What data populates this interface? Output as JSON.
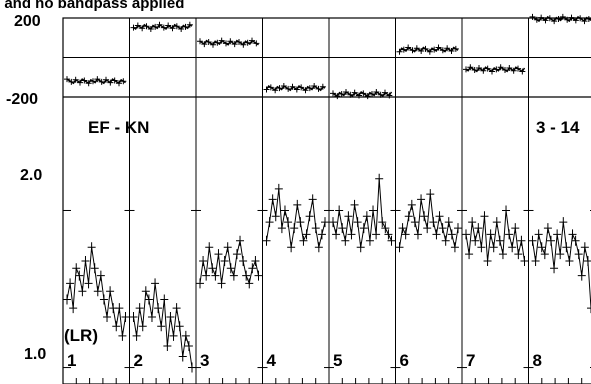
{
  "chart_data": {
    "type": "line",
    "title": "l and no bandpass applied",
    "baseline_label": "EF - KN",
    "baseline_label_right": "3 - 14",
    "polarization_label": "(LR)",
    "phase_panel": {
      "ylabel_ticks": [
        "200",
        "-200"
      ],
      "ylim": [
        -200,
        200
      ]
    },
    "amp_panel": {
      "tick_labels": [
        "2.0",
        "1.0"
      ],
      "ticks": [
        2.0,
        1.0
      ],
      "ylim": [
        0.93,
        3.3
      ],
      "scale": "log"
    },
    "channels": [
      {
        "label": "1",
        "phase": -120,
        "amp": [
          1.35,
          1.45,
          1.3,
          1.55,
          1.5,
          1.4,
          1.6,
          1.45,
          1.7,
          1.55,
          1.4,
          1.5,
          1.35,
          1.25,
          1.4,
          1.3,
          1.2,
          1.3,
          1.15,
          1.25
        ]
      },
      {
        "label": "2",
        "phase": 155,
        "amp": [
          1.25,
          1.15,
          1.3,
          1.2,
          1.4,
          1.35,
          1.25,
          1.45,
          1.3,
          1.2,
          1.35,
          1.1,
          1.25,
          1.15,
          1.3,
          1.2,
          1.05,
          1.15,
          1.1,
          1.0
        ]
      },
      {
        "label": "3",
        "phase": 75,
        "amp": [
          1.45,
          1.6,
          1.5,
          1.7,
          1.55,
          1.5,
          1.65,
          1.45,
          1.6,
          1.7,
          1.55,
          1.5,
          1.65,
          1.75,
          1.6,
          1.5,
          1.45,
          1.55,
          1.6,
          1.5
        ]
      },
      {
        "label": "4",
        "phase": -155,
        "amp": [
          1.75,
          1.9,
          2.1,
          1.95,
          2.2,
          1.85,
          2.0,
          1.9,
          1.7,
          1.85,
          2.05,
          1.9,
          1.75,
          1.8,
          1.95,
          2.1,
          1.85,
          1.7,
          1.8,
          1.9
        ]
      },
      {
        "label": "5",
        "phase": -185,
        "amp": [
          1.9,
          1.8,
          2.0,
          1.85,
          1.75,
          1.95,
          1.8,
          2.05,
          1.9,
          1.7,
          1.85,
          1.95,
          1.75,
          2.0,
          1.8,
          2.3,
          1.9,
          1.85,
          1.8,
          1.75
        ]
      },
      {
        "label": "6",
        "phase": 40,
        "amp": [
          1.7,
          1.85,
          1.8,
          1.95,
          2.05,
          1.9,
          1.8,
          2.1,
          1.95,
          1.85,
          2.15,
          1.9,
          1.8,
          1.95,
          1.85,
          1.75,
          1.9,
          1.8,
          1.7,
          1.85
        ]
      },
      {
        "label": "7",
        "phase": -60,
        "amp": [
          1.8,
          1.65,
          1.9,
          1.75,
          1.85,
          1.7,
          1.95,
          1.6,
          1.8,
          1.7,
          1.9,
          1.75,
          1.65,
          2.0,
          1.8,
          1.7,
          1.85,
          1.65,
          1.75,
          1.6
        ]
      },
      {
        "label": "8",
        "phase": 195,
        "amp": [
          1.75,
          1.6,
          1.8,
          1.7,
          1.65,
          1.85,
          1.75,
          1.55,
          1.8,
          1.65,
          1.9,
          1.7,
          1.6,
          1.8,
          1.75,
          1.65,
          1.5,
          1.7,
          1.6,
          1.3
        ]
      }
    ]
  }
}
